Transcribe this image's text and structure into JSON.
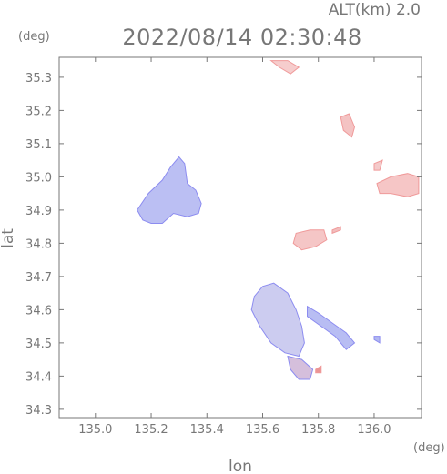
{
  "header": {
    "altitude_label": "ALT(km)  2.0",
    "datetime": "2022/08/14 02:30:48",
    "y_unit": "(deg)",
    "x_unit": "(deg)"
  },
  "chart_data": {
    "type": "heatmap",
    "title": "2022/08/14 02:30:48",
    "subtitle": "ALT(km)  2.0",
    "xlabel": "lon",
    "ylabel": "lat",
    "xlim": [
      134.87,
      136.17
    ],
    "ylim": [
      34.275,
      35.36
    ],
    "x_ticks": [
      135.0,
      135.2,
      135.4,
      135.6,
      135.8,
      136.0
    ],
    "x_tick_labels": [
      "135.0",
      "135.2",
      "135.4",
      "135.6",
      "135.8",
      "136.0"
    ],
    "y_ticks": [
      34.3,
      34.4,
      34.5,
      34.6,
      34.7,
      34.8,
      34.9,
      35.0,
      35.1,
      35.2,
      35.3
    ],
    "y_tick_labels": [
      "34.3",
      "34.4",
      "34.5",
      "34.6",
      "34.7",
      "34.8",
      "34.9",
      "35.0",
      "35.1",
      "35.2",
      "35.3"
    ],
    "grid": false,
    "colors": {
      "approaching": "#8c8cf0",
      "receding": "#f09a9a",
      "axis": "#777777"
    },
    "echo_regions": [
      {
        "name": "blue-cluster-northwest",
        "polarity": "negative",
        "color": "#b4b8f2",
        "points": [
          [
            135.17,
            34.87
          ],
          [
            135.15,
            34.9
          ],
          [
            135.19,
            34.95
          ],
          [
            135.24,
            34.99
          ],
          [
            135.27,
            35.03
          ],
          [
            135.3,
            35.06
          ],
          [
            135.32,
            35.04
          ],
          [
            135.33,
            34.98
          ],
          [
            135.36,
            34.96
          ],
          [
            135.38,
            34.92
          ],
          [
            135.37,
            34.89
          ],
          [
            135.33,
            34.88
          ],
          [
            135.28,
            34.89
          ],
          [
            135.24,
            34.86
          ],
          [
            135.2,
            34.86
          ]
        ]
      },
      {
        "name": "pink-cluster-northeast",
        "polarity": "positive",
        "color": "#f5c0c0",
        "points": [
          [
            136.02,
            34.95
          ],
          [
            136.01,
            34.98
          ],
          [
            136.06,
            35.0
          ],
          [
            136.12,
            35.01
          ],
          [
            136.16,
            35.0
          ],
          [
            136.16,
            34.95
          ],
          [
            136.12,
            34.94
          ],
          [
            136.06,
            34.95
          ]
        ]
      },
      {
        "name": "pink-blob-top",
        "polarity": "positive",
        "color": "#f5c8c8",
        "points": [
          [
            135.63,
            35.35
          ],
          [
            135.66,
            35.33
          ],
          [
            135.7,
            35.31
          ],
          [
            135.73,
            35.33
          ],
          [
            135.69,
            35.35
          ]
        ]
      },
      {
        "name": "pink-streak-upper-right",
        "polarity": "positive",
        "color": "#f3bcbc",
        "points": [
          [
            135.88,
            35.18
          ],
          [
            135.91,
            35.19
          ],
          [
            135.93,
            35.15
          ],
          [
            135.92,
            35.12
          ],
          [
            135.89,
            35.14
          ]
        ]
      },
      {
        "name": "pink-dot-right",
        "polarity": "positive",
        "color": "#f3c4c4",
        "points": [
          [
            136.0,
            35.04
          ],
          [
            136.03,
            35.05
          ],
          [
            136.02,
            35.02
          ],
          [
            136.0,
            35.02
          ]
        ]
      },
      {
        "name": "pink-band-middle",
        "polarity": "positive",
        "color": "#f4c0c0",
        "points": [
          [
            135.71,
            34.8
          ],
          [
            135.72,
            34.83
          ],
          [
            135.77,
            34.84
          ],
          [
            135.82,
            34.84
          ],
          [
            135.83,
            34.81
          ],
          [
            135.79,
            34.79
          ],
          [
            135.74,
            34.78
          ]
        ]
      },
      {
        "name": "pink-dash-middle",
        "polarity": "positive",
        "color": "#f1b6b6",
        "points": [
          [
            135.85,
            34.84
          ],
          [
            135.88,
            34.85
          ],
          [
            135.88,
            34.84
          ],
          [
            135.85,
            34.83
          ]
        ]
      },
      {
        "name": "mixed-cluster-south",
        "polarity": "mixed",
        "color": "#c6c6ee",
        "points": [
          [
            135.57,
            34.64
          ],
          [
            135.56,
            34.6
          ],
          [
            135.59,
            34.55
          ],
          [
            135.63,
            34.5
          ],
          [
            135.68,
            34.47
          ],
          [
            135.73,
            34.46
          ],
          [
            135.75,
            34.5
          ],
          [
            135.74,
            34.55
          ],
          [
            135.72,
            34.6
          ],
          [
            135.69,
            34.65
          ],
          [
            135.64,
            34.68
          ],
          [
            135.6,
            34.67
          ]
        ]
      },
      {
        "name": "blue-streak-southeast",
        "polarity": "negative",
        "color": "#b0b6f2",
        "points": [
          [
            135.76,
            34.61
          ],
          [
            135.8,
            34.59
          ],
          [
            135.85,
            34.56
          ],
          [
            135.9,
            34.53
          ],
          [
            135.93,
            34.5
          ],
          [
            135.9,
            34.48
          ],
          [
            135.86,
            34.52
          ],
          [
            135.81,
            34.55
          ],
          [
            135.76,
            34.58
          ]
        ]
      },
      {
        "name": "blue-dot-east",
        "polarity": "negative",
        "color": "#a8b0f0",
        "points": [
          [
            136.0,
            34.52
          ],
          [
            136.02,
            34.52
          ],
          [
            136.02,
            34.5
          ],
          [
            136.0,
            34.51
          ]
        ]
      },
      {
        "name": "mixed-tail-south",
        "polarity": "mixed",
        "color": "#d0b8d8",
        "points": [
          [
            135.69,
            34.46
          ],
          [
            135.74,
            34.45
          ],
          [
            135.78,
            34.42
          ],
          [
            135.77,
            34.39
          ],
          [
            135.73,
            34.39
          ],
          [
            135.7,
            34.42
          ]
        ]
      },
      {
        "name": "red-spot-south",
        "polarity": "positive",
        "color": "#e88a8a",
        "points": [
          [
            135.79,
            34.42
          ],
          [
            135.81,
            34.43
          ],
          [
            135.81,
            34.41
          ],
          [
            135.79,
            34.41
          ]
        ]
      }
    ]
  }
}
